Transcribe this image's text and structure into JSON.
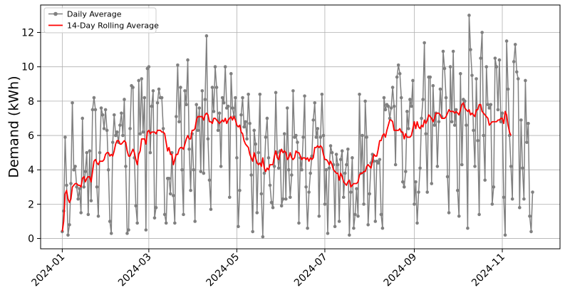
{
  "chart_data": {
    "type": "line",
    "title": "",
    "xlabel": "",
    "ylabel": "Demand (kWh)",
    "ylim": [
      -0.6,
      13.6
    ],
    "xlim": [
      "2023-12-17",
      "2024-12-11"
    ],
    "x_start": "2024-01-01",
    "x_end": "2024-11-30",
    "grid": true,
    "legend_position": "top-left",
    "y_ticks": [
      0,
      2,
      4,
      6,
      8,
      10,
      12
    ],
    "x_ticks": [
      {
        "date": "2024-01-01",
        "label": "2024-01"
      },
      {
        "date": "2024-03-01",
        "label": "2024-03"
      },
      {
        "date": "2024-05-01",
        "label": "2024-05"
      },
      {
        "date": "2024-07-01",
        "label": "2024-07"
      },
      {
        "date": "2024-09-01",
        "label": "2024-09"
      },
      {
        "date": "2024-11-01",
        "label": "2024-11"
      }
    ],
    "series": [
      {
        "name": "Daily Average",
        "color": "#808080",
        "marker": "circle",
        "values": [
          0.4,
          1.6,
          5.9,
          3.1,
          0.2,
          0.8,
          3.2,
          7.9,
          4.0,
          4.2,
          3.0,
          2.3,
          2.9,
          1.5,
          7.0,
          3.0,
          3.9,
          5.0,
          1.4,
          5.1,
          2.2,
          7.5,
          8.2,
          7.5,
          3.0,
          1.3,
          5.0,
          7.6,
          7.2,
          6.4,
          7.5,
          6.3,
          4.0,
          1.0,
          0.3,
          5.6,
          7.2,
          6.0,
          6.2,
          5.6,
          6.6,
          7.3,
          6.0,
          8.1,
          4.2,
          0.3,
          0.5,
          6.4,
          8.9,
          8.8,
          4.7,
          1.9,
          0.9,
          9.2,
          6.1,
          9.3,
          6.2,
          8.2,
          0.5,
          9.9,
          10.0,
          5.0,
          7.7,
          8.6,
          1.2,
          1.8,
          7.9,
          8.7,
          8.2,
          8.2,
          6.4,
          1.4,
          0.9,
          3.5,
          3.5,
          2.6,
          5.0,
          2.5,
          0.9,
          7.1,
          10.1,
          6.8,
          8.8,
          4.0,
          1.4,
          8.6,
          7.8,
          10.4,
          5.2,
          2.8,
          6.1,
          4.0,
          1.0,
          7.8,
          6.3,
          7.6,
          3.9,
          8.6,
          3.8,
          8.1,
          11.8,
          5.8,
          3.4,
          1.7,
          8.8,
          7.4,
          10.0,
          8.8,
          6.3,
          7.3,
          4.2,
          8.2,
          7.9,
          10.0,
          7.6,
          7.7,
          2.4,
          9.6,
          7.6,
          7.1,
          8.2,
          4.7,
          0.7,
          2.8,
          7.2,
          8.2,
          6.5,
          6.8,
          5.8,
          8.4,
          6.7,
          3.7,
          0.4,
          6.3,
          5.5,
          1.5,
          5.0,
          8.4,
          2.6,
          0.1,
          3.8,
          5.9,
          7.0,
          4.7,
          3.1,
          2.1,
          1.8,
          4.2,
          8.5,
          5.0,
          4.1,
          5.1,
          1.9,
          2.3,
          6.1,
          2.3,
          7.6,
          4.0,
          2.4,
          3.7,
          8.6,
          5.9,
          6.0,
          5.6,
          0.9,
          4.7,
          4.0,
          5.9,
          8.3,
          3.0,
          0.6,
          2.7,
          3.8,
          4.8,
          6.9,
          7.9,
          5.9,
          6.4,
          1.3,
          5.9,
          8.4,
          6.0,
          2.0,
          4.0,
          0.3,
          4.1,
          5.4,
          5.0,
          4.3,
          0.7,
          4.9,
          4.3,
          1.0,
          4.6,
          5.1,
          2.4,
          3.8,
          4.3,
          5.2,
          0.2,
          2.7,
          4.7,
          0.6,
          1.4,
          2.9,
          1.3,
          8.4,
          3.8,
          6.0,
          2.0,
          8.0,
          5.9,
          0.8,
          2.6,
          4.4,
          4.9,
          4.5,
          1.0,
          4.5,
          4.4,
          4.6,
          1.4,
          0.6,
          8.2,
          7.5,
          7.8,
          7.7,
          7.0,
          7.6,
          8.8,
          7.7,
          4.3,
          9.4,
          10.1,
          9.6,
          8.2,
          3.3,
          3.0,
          3.9,
          7.4,
          6.4,
          8.1,
          7.7,
          9.2,
          2.0,
          3.3,
          0.9,
          2.7,
          4.1,
          7.0,
          8.1,
          11.4,
          6.1,
          2.7,
          9.4,
          9.4,
          3.2,
          8.9,
          6.6,
          7.3,
          4.2,
          6.8,
          8.7,
          7.1,
          10.9,
          9.9,
          8.2,
          3.6,
          1.5,
          10.0,
          6.8,
          10.9,
          6.6,
          7.5,
          2.8,
          1.3,
          9.6,
          4.3,
          8.1,
          8.0,
          6.6,
          0.6,
          13.0,
          11.0,
          9.5,
          6.3,
          4.2,
          9.3,
          5.7,
          1.4,
          10.5,
          12.0,
          6.0,
          3.4,
          10.0,
          7.8,
          7.6,
          7.8,
          2.0,
          3.0,
          10.5,
          10.0,
          7.5,
          10.4,
          6.8,
          7.3,
          2.4,
          0.2,
          11.5,
          8.7,
          6.0,
          4.2,
          2.3,
          10.3,
          11.3,
          9.7,
          9.3,
          1.8,
          6.9,
          4.1,
          2.3,
          9.2,
          5.6,
          6.7,
          1.3,
          0.4,
          2.7
        ]
      },
      {
        "name": "14-Day Rolling Average",
        "color": "#ff0000",
        "marker": "none",
        "values": [
          0.4,
          1.0,
          2.6,
          2.8,
          2.3,
          2.1,
          2.3,
          3.0,
          3.1,
          3.2,
          3.2,
          3.1,
          3.1,
          3.0,
          3.5,
          3.6,
          3.3,
          3.5,
          3.6,
          3.6,
          3.3,
          3.9,
          4.5,
          4.6,
          4.4,
          4.3,
          4.5,
          4.5,
          4.5,
          4.6,
          4.9,
          5.0,
          5.0,
          4.8,
          4.9,
          4.8,
          5.1,
          5.5,
          5.7,
          5.7,
          5.5,
          5.5,
          5.6,
          5.7,
          5.6,
          5.1,
          4.8,
          4.8,
          5.0,
          5.2,
          5.0,
          4.6,
          4.3,
          4.9,
          5.1,
          5.8,
          5.8,
          5.8,
          5.5,
          6.2,
          6.3,
          6.1,
          6.2,
          6.2,
          6.2,
          6.1,
          6.3,
          6.3,
          6.3,
          6.2,
          6.2,
          6.1,
          5.6,
          5.1,
          5.3,
          4.9,
          4.9,
          4.3,
          4.6,
          4.9,
          4.9,
          5.2,
          5.3,
          5.3,
          5.2,
          5.5,
          5.8,
          6.0,
          5.8,
          5.8,
          6.3,
          6.3,
          6.4,
          6.9,
          7.1,
          7.1,
          7.1,
          7.1,
          6.9,
          7.2,
          7.3,
          7.2,
          6.8,
          6.8,
          6.7,
          7.0,
          7.0,
          6.9,
          6.8,
          6.7,
          6.8,
          6.9,
          6.8,
          7.0,
          6.7,
          6.9,
          7.0,
          7.1,
          6.9,
          7.1,
          6.9,
          6.6,
          6.5,
          6.6,
          6.2,
          6.1,
          5.7,
          5.5,
          5.4,
          5.3,
          4.9,
          4.7,
          4.5,
          5.0,
          4.7,
          4.4,
          4.3,
          4.4,
          4.2,
          4.7,
          4.1,
          3.9,
          4.1,
          4.0,
          4.3,
          4.3,
          4.3,
          4.8,
          5.1,
          4.7,
          4.6,
          5.0,
          5.2,
          5.0,
          5.1,
          5.0,
          4.6,
          4.7,
          5.0,
          4.7,
          4.6,
          4.7,
          5.1,
          5.0,
          5.0,
          4.8,
          4.6,
          4.7,
          4.7,
          4.6,
          4.7,
          4.5,
          4.7,
          4.6,
          4.7,
          5.3,
          5.3,
          5.4,
          5.3,
          5.4,
          5.3,
          4.9,
          4.6,
          4.6,
          4.5,
          4.3,
          4.5,
          4.3,
          4.0,
          3.9,
          3.8,
          3.8,
          3.4,
          3.8,
          3.6,
          3.3,
          3.2,
          3.1,
          3.3,
          3.4,
          3.0,
          3.1,
          3.2,
          3.2,
          3.2,
          3.3,
          3.7,
          3.8,
          3.8,
          3.9,
          3.9,
          4.2,
          4.3,
          4.2,
          4.1,
          4.5,
          4.9,
          4.8,
          4.8,
          5.2,
          5.7,
          5.7,
          6.0,
          6.1,
          5.9,
          6.3,
          6.6,
          6.9,
          6.9,
          6.8,
          6.3,
          6.3,
          6.3,
          6.3,
          6.4,
          6.2,
          6.2,
          5.8,
          6.1,
          5.9,
          5.9,
          5.9,
          6.0,
          6.4,
          6.8,
          6.4,
          6.8,
          6.5,
          6.4,
          6.6,
          6.5,
          6.9,
          6.7,
          6.9,
          7.2,
          7.1,
          7.0,
          6.8,
          7.0,
          7.3,
          7.3,
          7.3,
          7.2,
          7.0,
          7.0,
          7.0,
          7.1,
          7.3,
          7.5,
          7.4,
          7.4,
          7.4,
          7.3,
          7.4,
          7.3,
          7.2,
          7.5,
          7.8,
          7.9,
          7.6,
          7.5,
          7.4,
          7.5,
          7.2,
          7.3,
          7.2,
          7.1,
          7.5,
          7.5,
          7.8,
          7.8,
          7.4,
          7.3,
          7.2,
          7.1,
          7.0,
          6.6,
          6.7,
          6.8,
          6.8,
          6.8,
          6.8,
          6.9,
          6.9,
          7.0,
          7.0,
          6.7,
          7.4,
          7.2,
          6.6,
          6.2,
          6.0
        ]
      }
    ]
  }
}
